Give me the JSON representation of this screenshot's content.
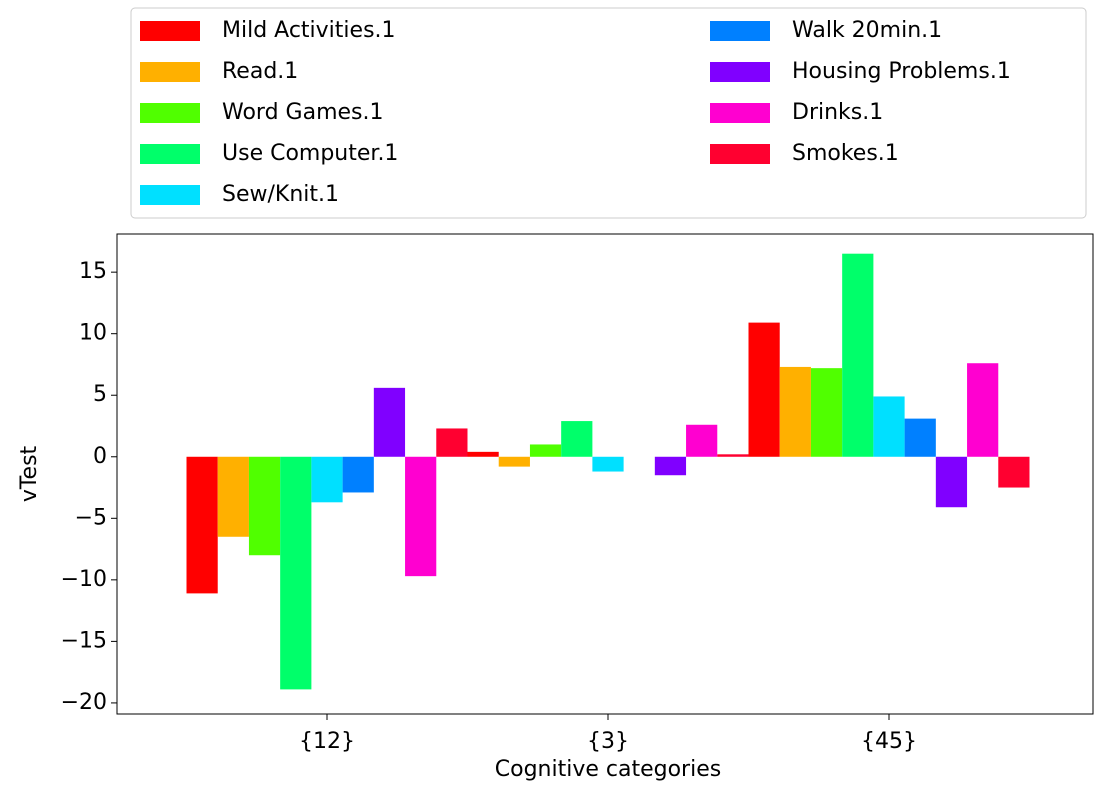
{
  "chart_data": {
    "type": "bar",
    "categories": [
      "{12}",
      "{3}",
      "{45}"
    ],
    "series": [
      {
        "name": "Mild Activities.1",
        "color": "#ff0000",
        "values": [
          -11.1,
          0.4,
          10.9
        ]
      },
      {
        "name": "Read.1",
        "color": "#ffb000",
        "values": [
          -6.5,
          -0.8,
          7.3
        ]
      },
      {
        "name": "Word Games.1",
        "color": "#50ff00",
        "values": [
          -8.0,
          1.0,
          7.2
        ]
      },
      {
        "name": "Use Computer.1",
        "color": "#00ff6a",
        "values": [
          -18.9,
          2.9,
          16.5
        ]
      },
      {
        "name": "Sew/Knit.1",
        "color": "#00e0ff",
        "values": [
          -3.7,
          -1.2,
          4.9
        ]
      },
      {
        "name": "Walk 20min.1",
        "color": "#0080ff",
        "values": [
          -2.9,
          0,
          3.1
        ]
      },
      {
        "name": "Housing Problems.1",
        "color": "#8000ff",
        "values": [
          5.6,
          -1.5,
          -4.1
        ]
      },
      {
        "name": "Drinks.1",
        "color": "#ff00d0",
        "values": [
          -9.7,
          2.6,
          7.6
        ]
      },
      {
        "name": "Smokes.1",
        "color": "#ff0030",
        "values": [
          2.3,
          0.2,
          -2.5
        ]
      }
    ],
    "xlabel": "Cognitive categories",
    "ylabel": "vTest",
    "ylim": [
      -20.9,
      18.1
    ],
    "yticks": [
      {
        "value": -20,
        "label": "−20"
      },
      {
        "value": -15,
        "label": "−15"
      },
      {
        "value": -10,
        "label": "−10"
      },
      {
        "value": -5,
        "label": "−5"
      },
      0,
      5,
      10,
      15
    ],
    "legend": "top"
  }
}
